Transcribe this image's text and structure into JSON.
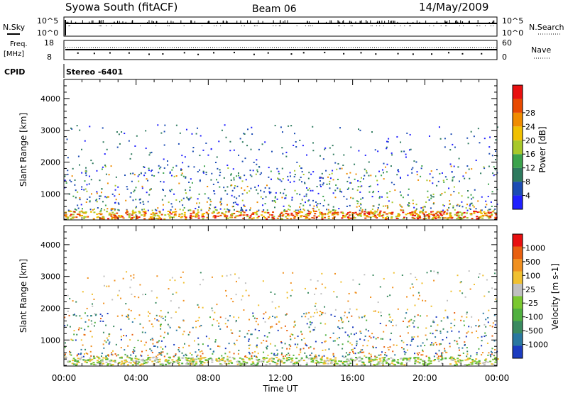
{
  "header": {
    "title": "Syowa South (fitACF)",
    "beam": "Beam 06",
    "date": "14/May/2009"
  },
  "chart_data": [
    {
      "type": "line",
      "id": "nsky-nsearch",
      "left_label": "N.Sky",
      "right_label": "N.Search",
      "left_ticks": [
        "10^5",
        "10^0"
      ],
      "right_ticks": [
        "10^5",
        "10^0"
      ],
      "scale": "log"
    },
    {
      "type": "line",
      "id": "freq-nave",
      "left_label_1": "Freq.",
      "left_label_2": "[MHz]",
      "right_label": "Nave",
      "left_ticks": [
        18,
        8
      ],
      "right_ticks": [
        60,
        0
      ],
      "ylim_left": [
        8,
        18
      ],
      "ylim_right": [
        0,
        60
      ]
    },
    {
      "type": "table",
      "id": "cpid",
      "label": "CPID",
      "value": "Stereo -6401"
    },
    {
      "type": "heatmap",
      "id": "power",
      "ylabel": "Slant Range [km]",
      "yticks": [
        1000,
        2000,
        3000,
        4000
      ],
      "ylim": [
        180,
        4600
      ],
      "colorbar_label": "Power [dB]",
      "colorbar_ticks": [
        4,
        8,
        12,
        16,
        20,
        24,
        28
      ],
      "colorbar_range": [
        0,
        32
      ],
      "colors": [
        "#2020ff",
        "#1c4cb4",
        "#2e7a5e",
        "#3ca34c",
        "#a8c82a",
        "#f0c000",
        "#f08c00",
        "#e84a00",
        "#e81010"
      ]
    },
    {
      "type": "heatmap",
      "id": "velocity",
      "ylabel": "Slant Range [km]",
      "yticks": [
        1000,
        2000,
        3000,
        4000
      ],
      "ylim": [
        180,
        4600
      ],
      "colorbar_label": "Velocity [m s-1]",
      "colorbar_ticks": [
        1000,
        500,
        100,
        25,
        -25,
        -100,
        -500,
        -1000
      ],
      "colors": [
        "#1c3cc0",
        "#2a78a0",
        "#3a8a60",
        "#50b040",
        "#7ac830",
        "#c0c0c0",
        "#f0c030",
        "#f09020",
        "#e86010",
        "#e81010"
      ]
    }
  ],
  "x_axis": {
    "label": "Time UT",
    "ticks": [
      "00:00",
      "04:00",
      "08:00",
      "12:00",
      "16:00",
      "20:00",
      "00:00"
    ],
    "range_hours": [
      0,
      24
    ]
  }
}
